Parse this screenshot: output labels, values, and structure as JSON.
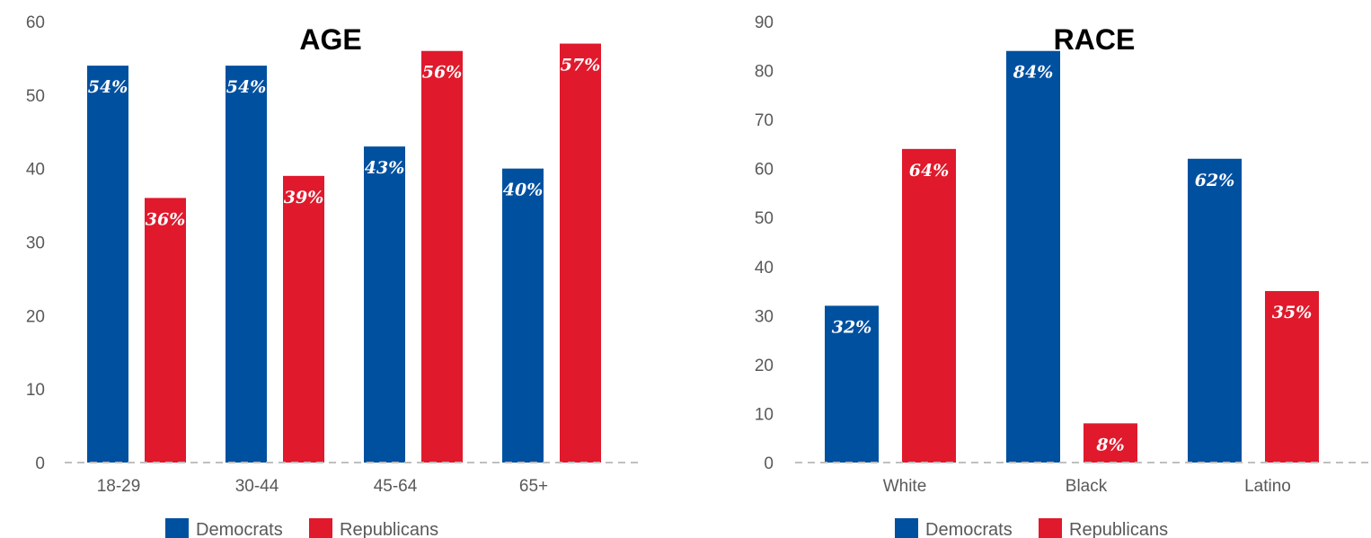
{
  "colors": {
    "democrats": "#0050a0",
    "republicans": "#e0192c"
  },
  "chart_data": [
    {
      "type": "bar",
      "title": "AGE",
      "categories": [
        "18-29",
        "30-44",
        "45-64",
        "65+"
      ],
      "series": [
        {
          "name": "Democrats",
          "values": [
            54,
            54,
            43,
            40
          ],
          "labels": [
            "54%",
            "54%",
            "43%",
            "40%"
          ]
        },
        {
          "name": "Republicans",
          "values": [
            36,
            39,
            56,
            57
          ],
          "labels": [
            "36%",
            "39%",
            "56%",
            "57%"
          ]
        }
      ],
      "ylim": [
        0,
        60
      ],
      "yticks": [
        0,
        10,
        20,
        30,
        40,
        50,
        60
      ],
      "grid": false,
      "legend": "bottom"
    },
    {
      "type": "bar",
      "title": "RACE",
      "categories": [
        "White",
        "Black",
        "Latino"
      ],
      "series": [
        {
          "name": "Democrats",
          "values": [
            32,
            84,
            62
          ],
          "labels": [
            "32%",
            "84%",
            "62%"
          ]
        },
        {
          "name": "Republicans",
          "values": [
            64,
            8,
            35
          ],
          "labels": [
            "64%",
            "8%",
            "35%"
          ]
        }
      ],
      "ylim": [
        0,
        90
      ],
      "yticks": [
        0,
        10,
        20,
        30,
        40,
        50,
        60,
        70,
        80,
        90
      ],
      "grid": false,
      "legend": "bottom"
    }
  ]
}
